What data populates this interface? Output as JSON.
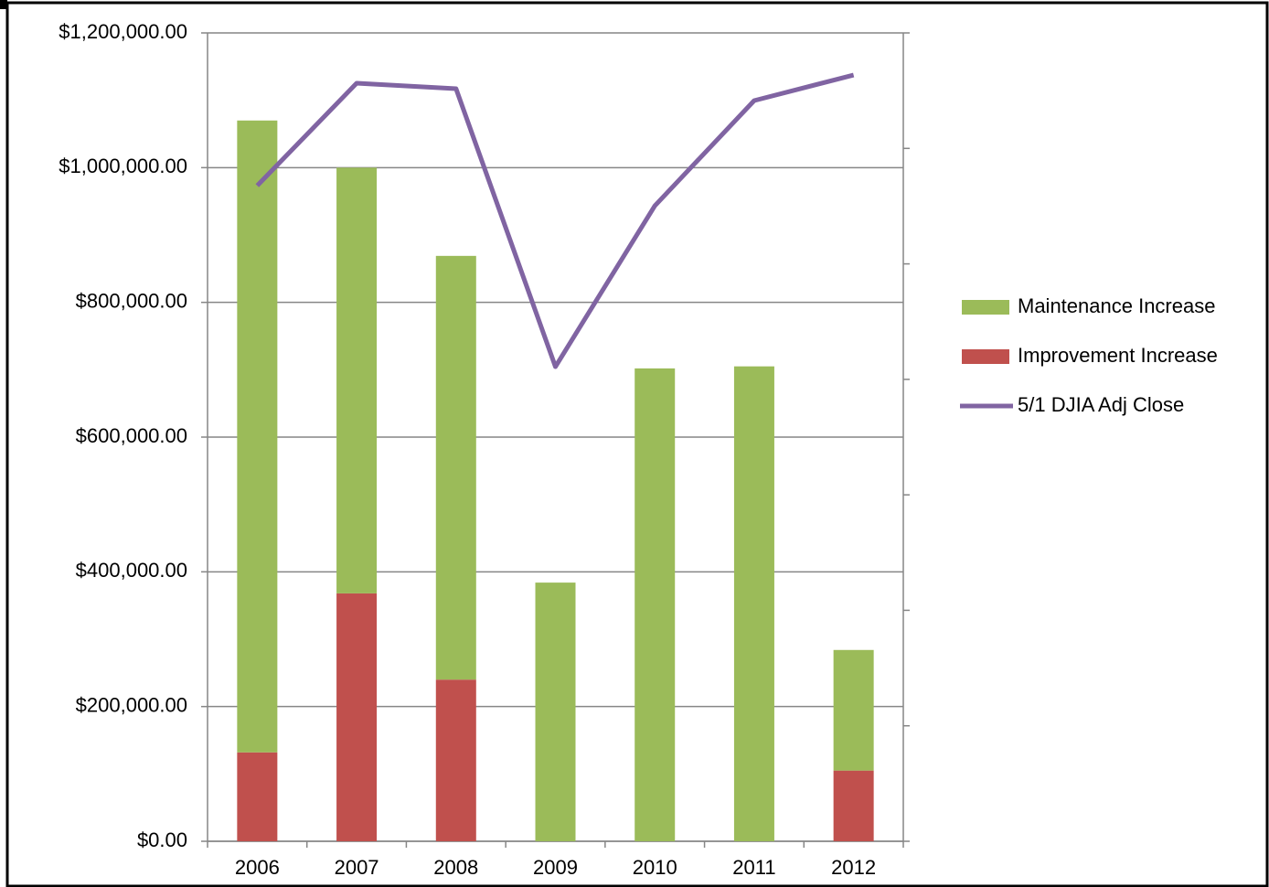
{
  "chart_data": {
    "type": "bar",
    "categories": [
      "2006",
      "2007",
      "2008",
      "2009",
      "2010",
      "2011",
      "2012"
    ],
    "series": [
      {
        "name": "Maintenance Increase",
        "color": "#9bbb59",
        "type": "bar",
        "values": [
          938000,
          632000,
          629000,
          384000,
          702000,
          705000,
          179000
        ]
      },
      {
        "name": "Improvement Increase",
        "color": "#c0504d",
        "type": "bar",
        "values": [
          132000,
          368000,
          240000,
          0,
          0,
          0,
          105000
        ]
      },
      {
        "name": "5/1 DJIA Adj Close",
        "color": "#8064a2",
        "type": "line",
        "axis": "y2",
        "values": [
          11355,
          13129,
          13034,
          8219,
          11006,
          12828,
          13271
        ]
      }
    ],
    "ylim": [
      0,
      1200000
    ],
    "yticks": [
      {
        "value": 0,
        "label": "$0.00"
      },
      {
        "value": 200000,
        "label": "$200,000.00"
      },
      {
        "value": 400000,
        "label": "$400,000.00"
      },
      {
        "value": 600000,
        "label": "$600,000.00"
      },
      {
        "value": 800000,
        "label": "$800,000.00"
      },
      {
        "value": 1000000,
        "label": "$1,000,000.00"
      },
      {
        "value": 1200000,
        "label": "$1,200,000.00"
      }
    ],
    "y2lim": [
      0,
      14000
    ],
    "y2ticks": [
      0,
      2000,
      4000,
      6000,
      8000,
      10000,
      12000,
      14000
    ],
    "grid": true,
    "legend": "right"
  }
}
